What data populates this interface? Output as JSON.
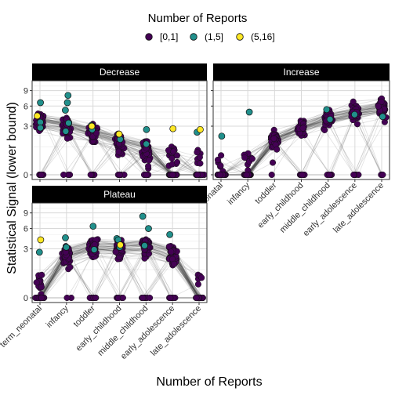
{
  "chart_data": {
    "type": "scatter",
    "xlabel": "Number of Reports",
    "ylabel": "Statistical Signal (lower bound)",
    "categories": [
      "term_neonatal",
      "infancy",
      "toddler",
      "early_childhood",
      "middle_childhood",
      "early_adolescence",
      "late_adolescence"
    ],
    "y_scale": "sqrt",
    "y_ticks": [
      0,
      3,
      6,
      9
    ],
    "ylim": [
      0,
      10.5
    ],
    "grid": true,
    "legend": {
      "title": "Number of Reports",
      "position": "top",
      "entries": [
        {
          "label": "[0,1]",
          "color": "#440154"
        },
        {
          "label": "(1,5]",
          "color": "#21908C"
        },
        {
          "label": "(5,16]",
          "color": "#FDE725"
        }
      ]
    },
    "panels": [
      {
        "name": "Decrease",
        "series": [
          {
            "name": "(1,5]",
            "points": [
              [
                0,
                3.5
              ],
              [
                0,
                2.8
              ],
              [
                0,
                6.6
              ],
              [
                1,
                8.0
              ],
              [
                1,
                6.6
              ],
              [
                1,
                5.3
              ],
              [
                1,
                3.4
              ],
              [
                1,
                2.4
              ],
              [
                2,
                3.1
              ],
              [
                2,
                2.6
              ],
              [
                3,
                2.1
              ],
              [
                3,
                1.6
              ],
              [
                4,
                1.2
              ],
              [
                4,
                2.6
              ],
              [
                6,
                2.3
              ]
            ]
          },
          {
            "name": "(5,16]",
            "points": [
              [
                0,
                4.4
              ],
              [
                2,
                3.0
              ],
              [
                3,
                2.1
              ],
              [
                5,
                2.7
              ],
              [
                6,
                2.6
              ]
            ]
          }
        ],
        "median_values": [
          3.6,
          3.0,
          2.2,
          1.4,
          0.8,
          0.4,
          0.2
        ]
      },
      {
        "name": "Increase",
        "series": [
          {
            "name": "(1,5]",
            "points": [
              [
                0,
                1.9
              ],
              [
                1,
                5.0
              ],
              [
                4,
                5.4
              ],
              [
                4,
                3.9
              ],
              [
                5,
                4.6
              ],
              [
                6,
                4.3
              ]
            ]
          },
          {
            "name": "(5,16]",
            "points": []
          }
        ],
        "median_values": [
          0.0,
          0.2,
          1.5,
          2.8,
          4.0,
          4.9,
          5.7
        ]
      },
      {
        "name": "Plateau",
        "series": [
          {
            "name": "(1,5]",
            "points": [
              [
                0,
                2.6
              ],
              [
                1,
                4.5
              ],
              [
                1,
                3.2
              ],
              [
                2,
                6.4
              ],
              [
                2,
                2.9
              ],
              [
                3,
                4.4
              ],
              [
                3,
                4.2
              ],
              [
                3,
                3.2
              ],
              [
                4,
                8.3
              ],
              [
                4,
                6.0
              ],
              [
                4,
                3.4
              ],
              [
                5,
                5.0
              ]
            ]
          },
          {
            "name": "(5,16]",
            "points": [
              [
                0,
                4.2
              ],
              [
                3,
                3.5
              ]
            ]
          }
        ],
        "median_values": [
          0.1,
          2.3,
          3.1,
          3.1,
          3.3,
          2.3,
          0.4
        ]
      }
    ]
  }
}
